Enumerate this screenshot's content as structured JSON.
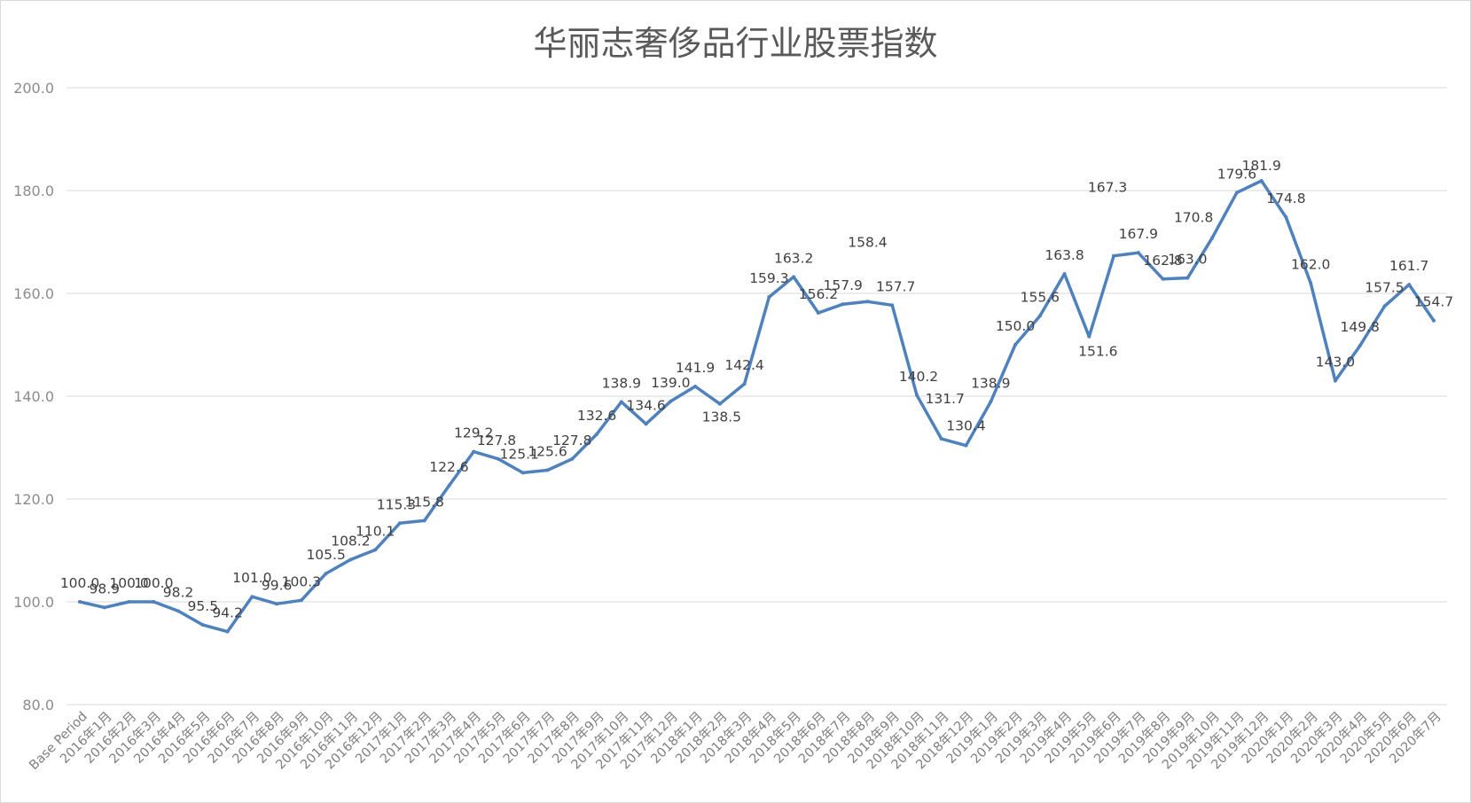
{
  "chart_data": {
    "type": "line",
    "title": "华丽志奢侈品行业股票指数",
    "xlabel": "",
    "ylabel": "",
    "ylim": [
      80,
      200
    ],
    "yticks": [
      "80.0",
      "100.0",
      "120.0",
      "140.0",
      "160.0",
      "180.0",
      "200.0"
    ],
    "grid": true,
    "legend": "none",
    "line_color": "#4f81bd",
    "categories": [
      "Base Period",
      "2016年1月",
      "2016年2月",
      "2016年3月",
      "2016年4月",
      "2016年5月",
      "2016年6月",
      "2016年7月",
      "2016年8月",
      "2016年9月",
      "2016年10月",
      "2016年11月",
      "2016年12月",
      "2017年1月",
      "2017年2月",
      "2017年3月",
      "2017年4月",
      "2017年5月",
      "2017年6月",
      "2017年7月",
      "2017年8月",
      "2017年9月",
      "2017年10月",
      "2017年11月",
      "2017年12月",
      "2018年1月",
      "2018年2月",
      "2018年3月",
      "2018年4月",
      "2018年5月",
      "2018年6月",
      "2018年7月",
      "2018年8月",
      "2018年9月",
      "2018年10月",
      "2018年11月",
      "2018年12月",
      "2019年1月",
      "2019年2月",
      "2019年3月",
      "2019年4月",
      "2019年5月",
      "2019年6月",
      "2019年7月",
      "2019年8月",
      "2019年9月",
      "2019年10月",
      "2019年11月",
      "2019年12月",
      "2020年1月",
      "2020年2月",
      "2020年3月",
      "2020年4月",
      "2020年5月",
      "2020年6月",
      "2020年7月"
    ],
    "values": [
      100.0,
      98.9,
      100.0,
      100.0,
      98.2,
      95.5,
      94.2,
      101.0,
      99.6,
      100.3,
      105.5,
      108.2,
      110.1,
      115.3,
      115.8,
      122.6,
      129.2,
      127.8,
      125.1,
      125.6,
      127.8,
      132.6,
      138.9,
      134.6,
      139.0,
      141.9,
      138.5,
      142.4,
      159.3,
      163.2,
      156.2,
      157.9,
      158.4,
      157.7,
      140.2,
      131.7,
      130.4,
      138.9,
      150.0,
      155.6,
      163.8,
      151.6,
      167.3,
      167.9,
      162.8,
      163.0,
      170.8,
      179.6,
      181.9,
      174.8,
      162.0,
      143.0,
      149.8,
      157.5,
      161.7,
      154.7
    ],
    "data_labels": [
      "100.0",
      "98.9",
      "100.0",
      "100.0",
      "98.2",
      "95.5",
      "94.2",
      "101.0",
      "99.6",
      "100.3",
      "105.5",
      "108.2",
      "110.1",
      "115.3",
      "115.8",
      "122.6",
      "129.2",
      "127.8",
      "125.1",
      "125.6",
      "127.8",
      "132.6",
      "138.9",
      "134.6",
      "139.0",
      "141.9",
      "138.5",
      "142.4",
      "159.3",
      "163.2",
      "156.2",
      "157.9",
      "158.4",
      "157.7",
      "140.2",
      "131.7",
      "130.4",
      "138.9",
      "150.0",
      "155.6",
      "163.8",
      "151.6",
      "167.3",
      "167.9",
      "162.8",
      "163.0",
      "170.8",
      "179.6",
      "181.9",
      "174.8",
      "162.0",
      "143.0",
      "149.8",
      "157.5",
      "161.7",
      "154.7"
    ]
  }
}
